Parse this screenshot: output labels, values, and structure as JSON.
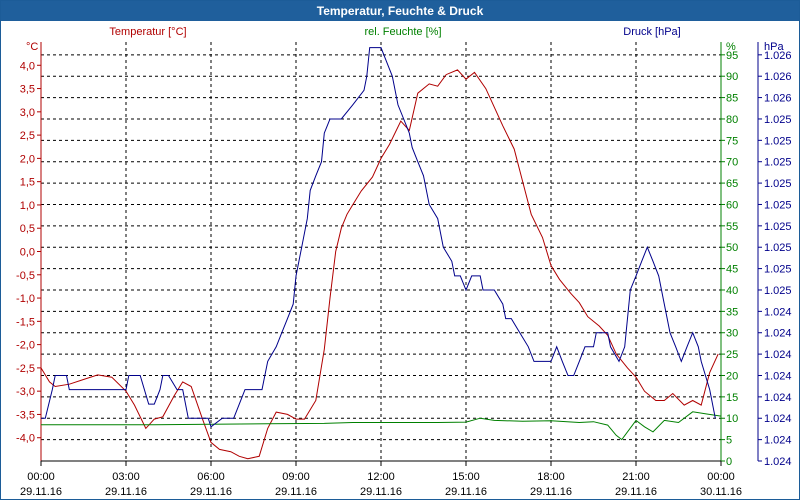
{
  "chart_data": {
    "type": "line",
    "title": "Temperatur, Feuchte & Druck",
    "colors": {
      "temperature": "#b00000",
      "humidity": "#008000",
      "pressure": "#00008b",
      "axis": "#000000",
      "grid": "#000000"
    },
    "x_ticks": [
      {
        "time": "00:00",
        "date": "29.11.16"
      },
      {
        "time": "03:00",
        "date": "29.11.16"
      },
      {
        "time": "06:00",
        "date": "29.11.16"
      },
      {
        "time": "09:00",
        "date": "29.11.16"
      },
      {
        "time": "12:00",
        "date": "29.11.16"
      },
      {
        "time": "15:00",
        "date": "29.11.16"
      },
      {
        "time": "18:00",
        "date": "29.11.16"
      },
      {
        "time": "21:00",
        "date": "29.11.16"
      },
      {
        "time": "00:00",
        "date": "30.11.16"
      }
    ],
    "xlim": [
      0,
      24
    ],
    "axes": {
      "temperature": {
        "label": "Temperatur [°C]",
        "unit": "°C",
        "ylim": [
          -4.5,
          4.5
        ],
        "ticks": [
          "4,0",
          "3,5",
          "3,0",
          "2,5",
          "2,0",
          "1,5",
          "1,0",
          "0,5",
          "0,0",
          "-0,5",
          "-1,0",
          "-1,5",
          "-2,0",
          "-2,5",
          "-3,0",
          "-3,5",
          "-4,0"
        ],
        "tick_values": [
          4.0,
          3.5,
          3.0,
          2.5,
          2.0,
          1.5,
          1.0,
          0.5,
          0.0,
          -0.5,
          -1.0,
          -1.5,
          -2.0,
          -2.5,
          -3.0,
          -3.5,
          -4.0
        ]
      },
      "humidity": {
        "label": "rel. Feuchte [%]",
        "unit": "%",
        "ylim": [
          0,
          98
        ],
        "ticks": [
          "95",
          "90",
          "85",
          "80",
          "75",
          "70",
          "65",
          "60",
          "55",
          "50",
          "45",
          "40",
          "35",
          "30",
          "25",
          "20",
          "15",
          "10",
          "5",
          "0"
        ],
        "tick_values": [
          95,
          90,
          85,
          80,
          75,
          70,
          65,
          60,
          55,
          50,
          45,
          40,
          35,
          30,
          25,
          20,
          15,
          10,
          5,
          0
        ]
      },
      "pressure": {
        "label": "Druck [hPa]",
        "unit": "hPa",
        "ticks": [
          "1.026",
          "1.026",
          "1.026",
          "1.025",
          "1.025",
          "1.025",
          "1.025",
          "1.025",
          "1.025",
          "1.025",
          "1.025",
          "1.025",
          "1.024",
          "1.024",
          "1.024",
          "1.024",
          "1.024",
          "1.024",
          "1.024",
          "1.024"
        ]
      }
    },
    "series": [
      {
        "name": "Temperatur",
        "axis": "temperature",
        "x": [
          0,
          0.3,
          0.5,
          1,
          1.5,
          2,
          2.5,
          3,
          3.3,
          3.7,
          4,
          4.3,
          4.7,
          5,
          5.3,
          5.7,
          6,
          6.3,
          6.7,
          7,
          7.3,
          7.7,
          8,
          8.3,
          8.7,
          9,
          9.3,
          9.7,
          10,
          10.2,
          10.4,
          10.6,
          10.8,
          11,
          11.3,
          11.7,
          12,
          12.3,
          12.7,
          13,
          13.3,
          13.7,
          14,
          14.3,
          14.7,
          15,
          15.3,
          15.7,
          16,
          16.3,
          16.7,
          17,
          17.3,
          17.7,
          18,
          18.3,
          18.7,
          19,
          19.3,
          19.7,
          20,
          20.3,
          20.7,
          21,
          21.3,
          21.7,
          22,
          22.3,
          22.7,
          23,
          23.3,
          23.6,
          23.9
        ],
        "y": [
          -2.5,
          -2.8,
          -2.9,
          -2.85,
          -2.75,
          -2.65,
          -2.7,
          -3.0,
          -3.3,
          -3.8,
          -3.6,
          -3.55,
          -3.1,
          -2.8,
          -2.9,
          -3.6,
          -4.1,
          -4.25,
          -4.3,
          -4.4,
          -4.45,
          -4.4,
          -3.8,
          -3.45,
          -3.5,
          -3.6,
          -3.6,
          -3.2,
          -2.1,
          -1.0,
          0.0,
          0.5,
          0.8,
          1.0,
          1.3,
          1.6,
          2.0,
          2.3,
          2.8,
          2.6,
          3.4,
          3.6,
          3.55,
          3.8,
          3.9,
          3.7,
          3.85,
          3.5,
          3.1,
          2.7,
          2.2,
          1.5,
          0.8,
          0.3,
          -0.3,
          -0.6,
          -0.9,
          -1.1,
          -1.4,
          -1.6,
          -1.8,
          -2.2,
          -2.5,
          -2.7,
          -3.0,
          -3.2,
          -3.2,
          -3.05,
          -3.3,
          -3.2,
          -3.3,
          -2.6,
          -2.2
        ]
      },
      {
        "name": "rel. Feuchte",
        "axis": "humidity",
        "x": [
          0,
          2,
          4,
          6,
          8,
          10,
          11,
          12,
          13,
          14,
          15,
          15.5,
          16,
          17,
          18,
          19,
          19.5,
          20,
          20.3,
          20.5,
          21,
          21.3,
          21.6,
          22,
          22.5,
          23,
          23.5,
          24
        ],
        "y": [
          8.5,
          8.5,
          8.5,
          8.6,
          8.7,
          8.8,
          9,
          9,
          9,
          9,
          9.1,
          10,
          9.5,
          9.3,
          9.4,
          9,
          9.2,
          8.4,
          6,
          5,
          9.5,
          8,
          6.8,
          9.5,
          9,
          11.5,
          11,
          10.5
        ]
      },
      {
        "name": "Druck",
        "axis": "pressure",
        "value_scale": "relative_step_0_to_100",
        "x": [
          0,
          0.15,
          0.4,
          0.5,
          0.8,
          0.9,
          1.0,
          1.4,
          1.5,
          2.0,
          2.5,
          3.0,
          3.1,
          3.5,
          3.8,
          4.0,
          4.2,
          4.3,
          4.5,
          4.8,
          5.0,
          5.2,
          5.3,
          5.5,
          5.8,
          5.9,
          6.0,
          6.4,
          6.5,
          6.8,
          7.0,
          7.2,
          7.5,
          7.8,
          8.0,
          8.3,
          8.5,
          8.7,
          8.9,
          9.0,
          9.2,
          9.4,
          9.5,
          9.7,
          9.9,
          10.0,
          10.2,
          10.3,
          10.6,
          11.0,
          11.4,
          11.5,
          11.6,
          11.9,
          12.0,
          12.2,
          12.4,
          12.6,
          12.8,
          13.0,
          13.1,
          13.3,
          13.5,
          13.7,
          14.0,
          14.2,
          14.5,
          14.6,
          14.8,
          15.0,
          15.2,
          15.5,
          15.6,
          15.8,
          16.0,
          16.3,
          16.4,
          16.6,
          16.9,
          17.2,
          17.4,
          17.6,
          18.0,
          18.2,
          18.4,
          18.6,
          18.8,
          19.0,
          19.2,
          19.5,
          19.6,
          20.0,
          20.1,
          20.4,
          20.6,
          20.8,
          21.0,
          21.2,
          21.4,
          21.6,
          21.8,
          22.0,
          22.2,
          22.4,
          22.6,
          22.8,
          23.0,
          23.2,
          23.3,
          23.6,
          23.8
        ],
        "y": [
          10,
          10,
          16.7,
          20,
          20,
          20,
          16.7,
          16.7,
          16.7,
          16.7,
          16.7,
          16.7,
          20,
          20,
          13.3,
          13.3,
          16.7,
          20,
          20,
          16.7,
          16.7,
          10,
          10,
          10,
          10,
          10,
          8,
          10,
          10,
          10,
          13.3,
          16.7,
          16.7,
          16.7,
          23.3,
          26.7,
          30,
          33.3,
          36.7,
          43.3,
          50,
          56.7,
          63.3,
          66.7,
          70,
          76.7,
          80,
          80,
          80,
          83.3,
          86.7,
          90,
          96.7,
          96.7,
          96.7,
          93.3,
          90,
          83.3,
          80,
          76.7,
          73.3,
          70,
          66.7,
          60,
          56.7,
          50,
          46.7,
          43.3,
          43.3,
          40,
          43.3,
          43.3,
          40,
          40,
          40,
          36.7,
          33.3,
          33.3,
          30,
          26.7,
          23.3,
          23.3,
          23.3,
          26.7,
          23.3,
          20,
          20,
          23.3,
          26.7,
          26.7,
          30,
          30,
          26.7,
          23.3,
          26.7,
          40,
          43.3,
          46.7,
          50,
          46.7,
          43.3,
          36.7,
          30,
          26.7,
          23.3,
          26.7,
          30,
          26.7,
          23.3,
          16.7,
          10
        ]
      }
    ]
  }
}
